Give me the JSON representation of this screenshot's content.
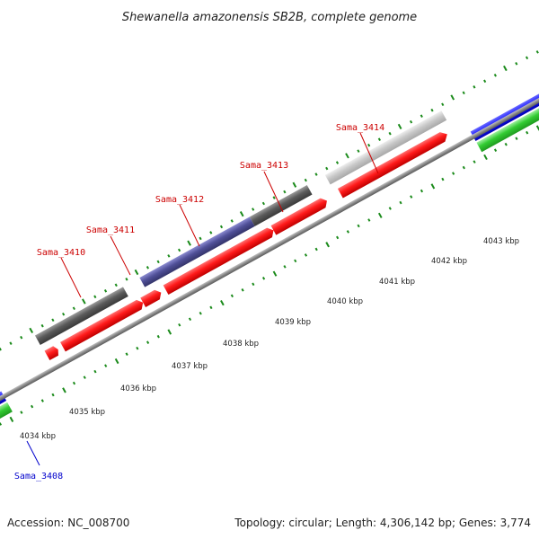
{
  "title": "Shewanella amazonensis SB2B, complete genome",
  "footer": {
    "accession": "Accession: NC_008700",
    "stats": "Topology: circular; Length: 4,306,142 bp; Genes: 3,774"
  },
  "ticks": [
    {
      "label": "4034 kbp"
    },
    {
      "label": "4035 kbp"
    },
    {
      "label": "4036 kbp"
    },
    {
      "label": "4037 kbp"
    },
    {
      "label": "4038 kbp"
    },
    {
      "label": "4039 kbp"
    },
    {
      "label": "4040 kbp"
    },
    {
      "label": "4041 kbp"
    },
    {
      "label": "4042 kbp"
    },
    {
      "label": "4043 kbp"
    }
  ],
  "gene_labels": [
    {
      "text": "Sama_3408",
      "color": "#0000cc"
    },
    {
      "text": "Sama_3410",
      "color": "#cc0000"
    },
    {
      "text": "Sama_3411",
      "color": "#cc0000"
    },
    {
      "text": "Sama_3412",
      "color": "#cc0000"
    },
    {
      "text": "Sama_3413",
      "color": "#cc0000"
    },
    {
      "text": "Sama_3414",
      "color": "#cc0000"
    }
  ],
  "colors": {
    "cds": "#ff1a1a",
    "backbone": "#888888",
    "blast_blue": "#1a1aff",
    "blast_green": "#33cc33",
    "blast_dark_grey": "#5a5a5a",
    "blast_light_grey": "#c8c8c8",
    "blast_purple": "#505098",
    "tick_green": "#1a8a1a"
  }
}
